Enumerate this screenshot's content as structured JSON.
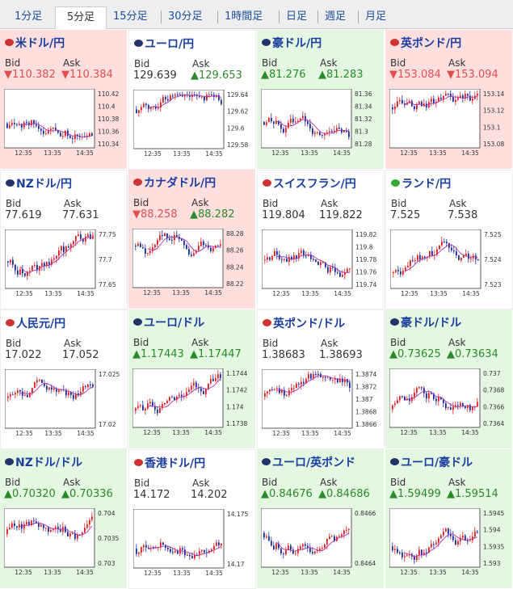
{
  "tabs": [
    {
      "label": "1分足",
      "active": false
    },
    {
      "label": "5分足",
      "active": true
    },
    {
      "label": "15分足",
      "active": false
    },
    {
      "label": "30分足",
      "active": false
    },
    {
      "label": "1時間足",
      "active": false
    },
    {
      "label": "日足",
      "active": false
    },
    {
      "label": "週足",
      "active": false
    },
    {
      "label": "月足",
      "active": false
    }
  ],
  "colors": {
    "down": "#e05050",
    "up": "#2a8a2a",
    "bg_down": "#ffdede",
    "bg_up": "#e3f7e1",
    "link": "#1a3fa0",
    "bull_candle": "#e02020",
    "bear_candle": "#1a2a9a",
    "ma_line": "#b030b0"
  },
  "labels": {
    "bid": "Bid",
    "ask": "Ask"
  },
  "time_labels": [
    "12:35",
    "13:35",
    "14:35"
  ],
  "pairs": [
    {
      "name": "米ドル/円",
      "dir": "down",
      "bid": "110.382",
      "ask": "110.384",
      "ticks": [
        "110.42",
        "110.4",
        "110.38",
        "110.36",
        "110.34"
      ],
      "flag": "#c33"
    },
    {
      "name": "ユーロ/円",
      "dir": "none",
      "bid": "129.639",
      "ask": "129.653",
      "ask_dir": "up",
      "ticks": [
        "129.64",
        "129.62",
        "129.6",
        "129.58"
      ],
      "flag": "#236"
    },
    {
      "name": "豪ドル/円",
      "dir": "up",
      "bid": "81.276",
      "ask": "81.283",
      "ticks": [
        "81.36",
        "81.34",
        "81.32",
        "81.3",
        "81.28"
      ],
      "flag": "#236"
    },
    {
      "name": "英ポンド/円",
      "dir": "down",
      "bid": "153.084",
      "ask": "153.094",
      "ticks": [
        "153.14",
        "153.12",
        "153.1",
        "153.08"
      ],
      "flag": "#c33"
    },
    {
      "name": "NZドル/円",
      "dir": "none",
      "bid": "77.619",
      "ask": "77.631",
      "ticks": [
        "77.75",
        "77.7",
        "77.65"
      ],
      "flag": "#236"
    },
    {
      "name": "カナダドル/円",
      "dir": "down",
      "bid": "88.258",
      "ask": "88.282",
      "ask_dir": "up",
      "ticks": [
        "88.28",
        "88.26",
        "88.24",
        "88.22"
      ],
      "flag": "#c33"
    },
    {
      "name": "スイスフラン/円",
      "dir": "none",
      "bid": "119.804",
      "ask": "119.822",
      "ticks": [
        "119.82",
        "119.8",
        "119.78",
        "119.76",
        "119.74"
      ],
      "flag": "#c33"
    },
    {
      "name": "ランド/円",
      "dir": "none",
      "bid": "7.525",
      "ask": "7.538",
      "ticks": [
        "7.525",
        "7.524",
        "7.523"
      ],
      "flag": "#3a3"
    },
    {
      "name": "人民元/円",
      "dir": "none",
      "bid": "17.022",
      "ask": "17.052",
      "ticks": [
        "17.025",
        "17.02"
      ],
      "flag": "#c33"
    },
    {
      "name": "ユーロ/ドル",
      "dir": "up",
      "bid": "1.17443",
      "ask": "1.17447",
      "ticks": [
        "1.1744",
        "1.1742",
        "1.174",
        "1.1738"
      ],
      "flag": "#236"
    },
    {
      "name": "英ポンド/ドル",
      "dir": "none",
      "bid": "1.38683",
      "ask": "1.38693",
      "ticks": [
        "1.3874",
        "1.3872",
        "1.387",
        "1.3868",
        "1.3866"
      ],
      "flag": "#c33"
    },
    {
      "name": "豪ドル/ドル",
      "dir": "up",
      "bid": "0.73625",
      "ask": "0.73634",
      "ticks": [
        "0.737",
        "0.7368",
        "0.7366",
        "0.7364"
      ],
      "flag": "#236"
    },
    {
      "name": "NZドル/ドル",
      "dir": "up",
      "bid": "0.70320",
      "ask": "0.70336",
      "ticks": [
        "0.704",
        "0.7035",
        "0.703"
      ],
      "flag": "#236"
    },
    {
      "name": "香港ドル/円",
      "dir": "none",
      "bid": "14.172",
      "ask": "14.202",
      "ticks": [
        "14.175",
        "14.17"
      ],
      "flag": "#c33"
    },
    {
      "name": "ユーロ/英ポンド",
      "dir": "up",
      "bid": "0.84676",
      "ask": "0.84686",
      "ticks": [
        "0.8466",
        "0.8464"
      ],
      "flag": "#236"
    },
    {
      "name": "ユーロ/豪ドル",
      "dir": "up",
      "bid": "1.59499",
      "ask": "1.59514",
      "ticks": [
        "1.5945",
        "1.594",
        "1.5935",
        "1.593"
      ],
      "flag": "#236"
    }
  ]
}
